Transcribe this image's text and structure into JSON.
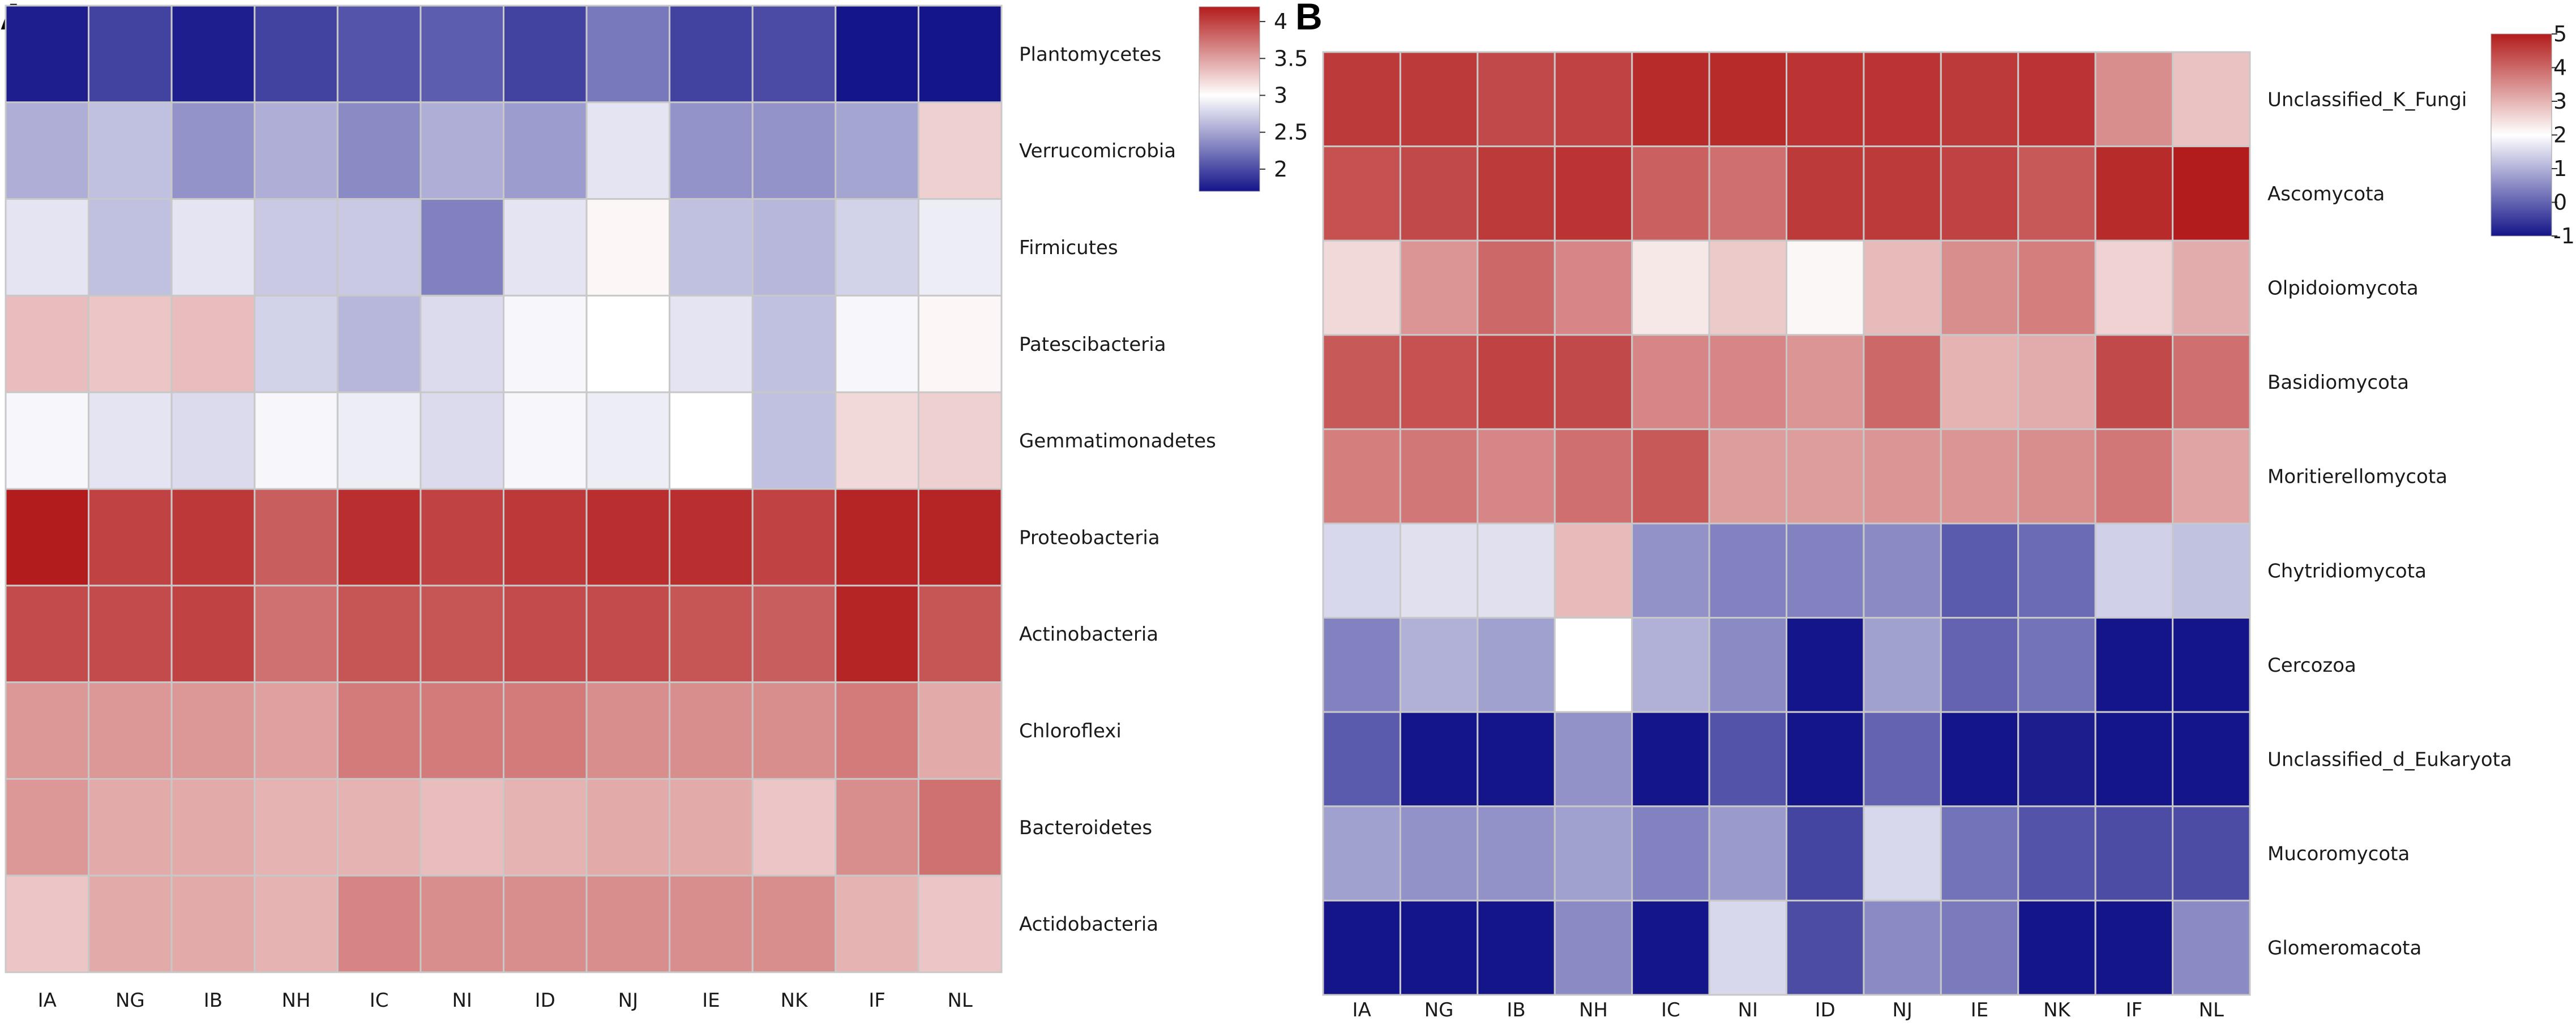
{
  "figure_title": "",
  "colors": {
    "low": "#15158a",
    "mid": "#ffffff",
    "high": "#b31c1c",
    "grid": "#c8c8c8"
  },
  "chart_data": [
    {
      "panel": "A",
      "type": "heatmap",
      "title": "",
      "xlabel": "",
      "ylabel": "",
      "columns": [
        "IA",
        "NG",
        "IB",
        "NH",
        "IC",
        "NI",
        "ID",
        "NJ",
        "IE",
        "NK",
        "IF",
        "NL"
      ],
      "rows": [
        "Plantomycetes",
        "Verrucomicrobia",
        "Firmicutes",
        "Patescibacteria",
        "Gemmatimonadetes",
        "Proteobacteria",
        "Actinobacteria",
        "Chloroflexi",
        "Bacteroidetes",
        "Actidobacteria"
      ],
      "values": [
        [
          1.75,
          1.95,
          1.75,
          1.95,
          2.05,
          2.1,
          1.95,
          2.25,
          1.95,
          2.0,
          1.65,
          1.7
        ],
        [
          2.55,
          2.65,
          2.4,
          2.55,
          2.35,
          2.55,
          2.45,
          2.85,
          2.4,
          2.4,
          2.5,
          3.25
        ],
        [
          2.85,
          2.65,
          2.85,
          2.7,
          2.7,
          2.3,
          2.85,
          3.05,
          2.65,
          2.6,
          2.75,
          2.9
        ],
        [
          3.35,
          3.3,
          3.35,
          2.75,
          2.6,
          2.8,
          2.95,
          3.0,
          2.85,
          2.65,
          2.95,
          3.05
        ],
        [
          2.95,
          2.85,
          2.8,
          2.95,
          2.9,
          2.8,
          2.95,
          2.9,
          3.0,
          2.65,
          3.2,
          3.25
        ],
        [
          4.2,
          4.0,
          4.05,
          3.85,
          4.1,
          4.0,
          4.05,
          4.1,
          4.1,
          4.0,
          4.15,
          4.15
        ],
        [
          3.95,
          3.95,
          4.0,
          3.75,
          3.9,
          3.9,
          3.95,
          3.95,
          3.9,
          3.85,
          4.15,
          3.9
        ],
        [
          3.55,
          3.55,
          3.55,
          3.5,
          3.7,
          3.7,
          3.7,
          3.6,
          3.6,
          3.6,
          3.7,
          3.45
        ],
        [
          3.55,
          3.45,
          3.45,
          3.4,
          3.4,
          3.35,
          3.4,
          3.45,
          3.45,
          3.3,
          3.6,
          3.75
        ],
        [
          3.3,
          3.45,
          3.45,
          3.4,
          3.65,
          3.6,
          3.6,
          3.6,
          3.6,
          3.6,
          3.4,
          3.3
        ]
      ],
      "vmin": 1.7,
      "vmid": 3,
      "vmax": 4.2,
      "colorbar_ticks": [
        "4",
        "3.5",
        "3",
        "2.5",
        "2"
      ],
      "colorbar_tick_values": [
        4,
        3.5,
        3,
        2.5,
        2
      ]
    },
    {
      "panel": "B",
      "type": "heatmap",
      "title": "",
      "xlabel": "",
      "ylabel": "",
      "columns": [
        "IA",
        "NG",
        "IB",
        "NH",
        "IC",
        "NI",
        "ID",
        "NJ",
        "IE",
        "NK",
        "IF",
        "NL"
      ],
      "rows": [
        "Unclassified_K_Fungi",
        "Ascomycota",
        "Olpidoiomycota",
        "Basidiomycota",
        "Moritierellomycota",
        "Chytridiomycota",
        "Cercozoa",
        "Unclassified_d_Eukaryota",
        "Mucoromycota",
        "Glomeromacota"
      ],
      "values": [
        [
          4.6,
          4.6,
          4.4,
          4.5,
          4.8,
          4.8,
          4.7,
          4.7,
          4.6,
          4.7,
          3.5,
          2.8
        ],
        [
          4.3,
          4.4,
          4.6,
          4.7,
          4.1,
          3.9,
          4.6,
          4.6,
          4.5,
          4.2,
          4.8,
          5.0
        ],
        [
          2.5,
          3.4,
          4.0,
          3.6,
          2.3,
          2.7,
          2.1,
          2.9,
          3.5,
          3.7,
          2.6,
          3.1
        ],
        [
          4.2,
          4.3,
          4.5,
          4.4,
          3.6,
          3.6,
          3.4,
          4.0,
          3.0,
          3.1,
          4.4,
          3.9
        ],
        [
          3.7,
          3.8,
          3.6,
          3.9,
          4.2,
          3.3,
          3.3,
          3.4,
          3.4,
          3.5,
          3.8,
          3.2
        ],
        [
          1.5,
          1.6,
          1.6,
          2.9,
          0.6,
          0.4,
          0.4,
          0.5,
          -0.1,
          0.1,
          1.4,
          1.2
        ],
        [
          0.4,
          1.0,
          0.8,
          2.0,
          1.0,
          0.5,
          -1.0,
          0.8,
          0.0,
          0.2,
          -1.0,
          -1.0
        ],
        [
          -0.1,
          -1.0,
          -1.0,
          0.6,
          -1.0,
          -0.2,
          -1.0,
          0.0,
          -1.0,
          -0.9,
          -1.0,
          -1.0
        ],
        [
          0.8,
          0.6,
          0.6,
          0.8,
          0.4,
          0.7,
          -0.4,
          1.5,
          0.2,
          -0.2,
          -0.3,
          -0.3
        ],
        [
          -1.0,
          -1.0,
          -1.0,
          0.5,
          -1.0,
          1.5,
          -0.3,
          0.5,
          0.3,
          -1.0,
          -1.0,
          0.5
        ]
      ],
      "vmin": -1,
      "vmid": 2,
      "vmax": 5,
      "colorbar_ticks": [
        "5",
        "4",
        "3",
        "2",
        "1",
        "0",
        "-1"
      ],
      "colorbar_tick_values": [
        5,
        4,
        3,
        2,
        1,
        0,
        -1
      ]
    }
  ]
}
